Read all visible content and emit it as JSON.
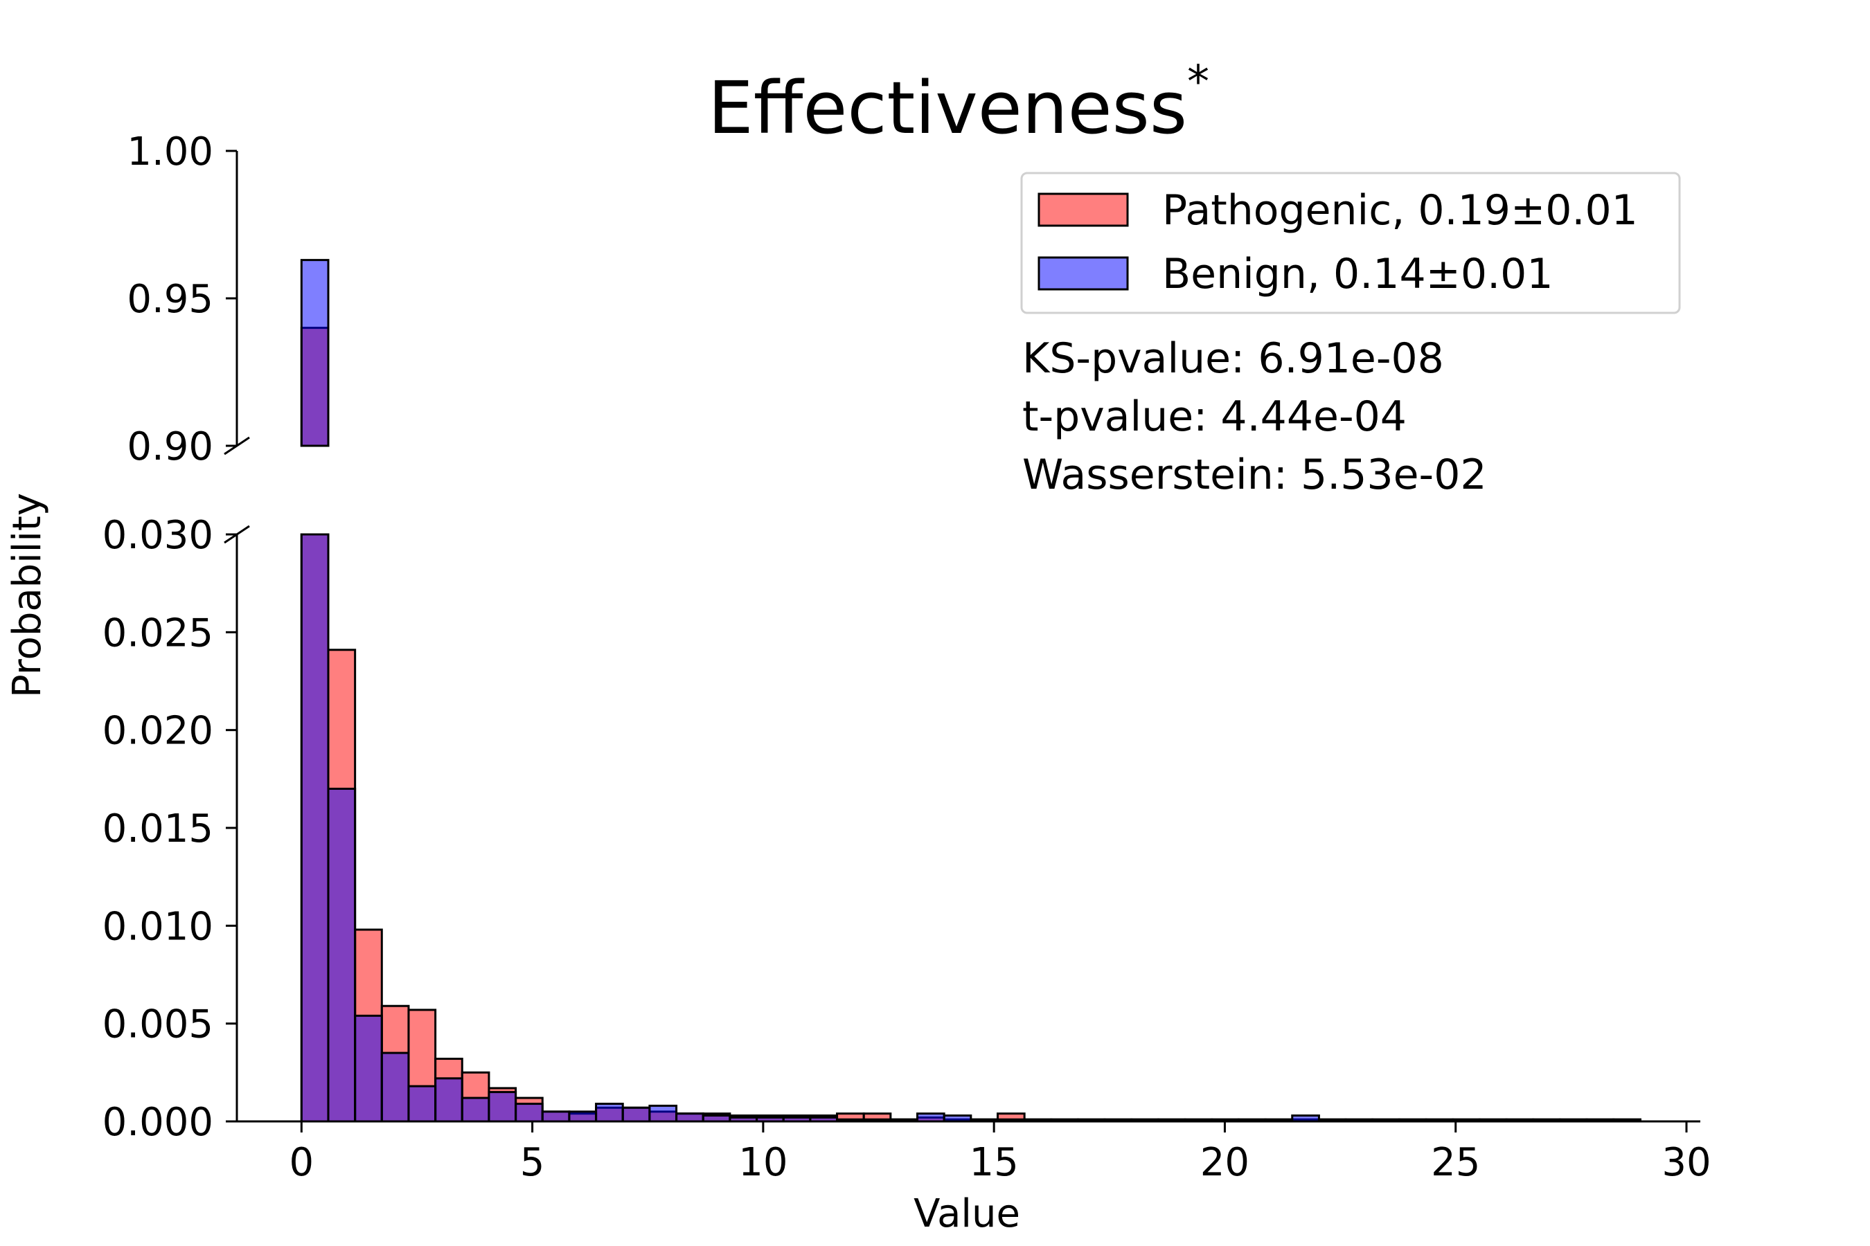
{
  "chart_data": {
    "type": "histogram",
    "title": "Effectiveness",
    "title_superscript": "*",
    "xlabel": "Value",
    "ylabel": "Probability",
    "xlim": [
      -1.4,
      30.3
    ],
    "bin_width": 0.58,
    "bins_start": 0,
    "x_ticks": [
      0,
      5,
      10,
      15,
      20,
      25,
      30
    ],
    "y_axis_broken": true,
    "upper_panel": {
      "ylim": [
        0.9,
        1.0
      ],
      "y_ticks": [
        "0.90",
        "0.95",
        "1.00"
      ]
    },
    "lower_panel": {
      "ylim": [
        0.0,
        0.03
      ],
      "y_ticks": [
        "0.000",
        "0.005",
        "0.010",
        "0.015",
        "0.020",
        "0.025",
        "0.030"
      ]
    },
    "series": [
      {
        "name": "Pathogenic, 0.19±0.01",
        "color": "#ff0000",
        "values": [
          0.94,
          0.0241,
          0.0098,
          0.0059,
          0.0057,
          0.0032,
          0.0025,
          0.0017,
          0.0012,
          0.0005,
          0.0004,
          0.0007,
          0.0007,
          0.0005,
          0.0004,
          0.0004,
          0.0003,
          0.0003,
          0.0003,
          0.0003,
          0.0004,
          0.0004,
          0.0001,
          0.0002,
          0.0001,
          0.0001,
          0.0004,
          0.0001,
          0.0001,
          0.0001,
          0.0001,
          0.0001,
          0.0001,
          0.0001,
          0.0001,
          0.0001,
          0.0001,
          0.0001,
          0.0001,
          0.0001,
          0.0001,
          0.0001,
          0.0001,
          0.0001,
          0.0001,
          0.0001,
          0.0001,
          0.0001,
          0.0001,
          0.0001
        ]
      },
      {
        "name": "Benign, 0.14±0.01",
        "color": "#0000ff",
        "values": [
          0.963,
          0.017,
          0.0054,
          0.0035,
          0.0018,
          0.0022,
          0.0012,
          0.0015,
          0.0009,
          0.0005,
          0.0005,
          0.0009,
          0.0007,
          0.0008,
          0.0004,
          0.0003,
          0.0002,
          0.0002,
          0.0002,
          0.0002,
          0.0001,
          0.0001,
          0.0001,
          0.0004,
          0.0003,
          0.0001,
          0.0001,
          0.0001,
          0.0001,
          0.0001,
          0.0001,
          0.0001,
          0.0001,
          0.0001,
          0.0001,
          0.0001,
          0.0001,
          0.0003,
          0.0001,
          0.0001,
          0.0001,
          0.0001,
          0.0001,
          0.0001,
          0.0001,
          0.0001,
          0.0001,
          0.0001,
          0.0001,
          0.0001
        ]
      }
    ],
    "legend_position": "upper-right",
    "stats": [
      "KS-pvalue: 6.91e-08",
      "t-pvalue: 4.44e-04",
      "Wasserstein: 5.53e-02"
    ]
  }
}
